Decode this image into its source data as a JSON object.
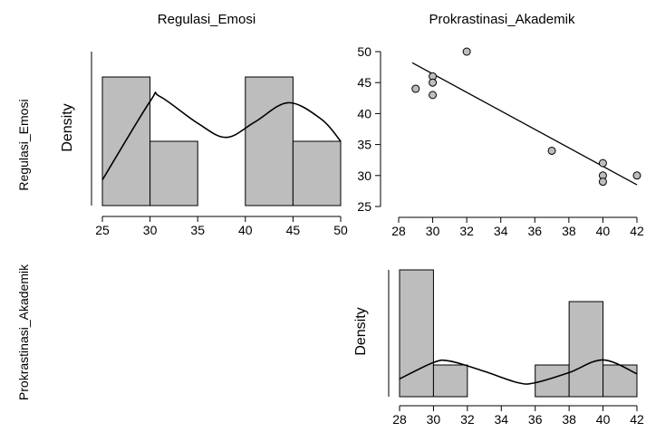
{
  "labels": {
    "col_left": "Regulasi_Emosi",
    "col_right": "Prokrastinasi_Akademik",
    "row_top": "Regulasi_Emosi",
    "row_bottom": "Prokrastinasi_Akademik"
  },
  "chart_data": [
    {
      "type": "histogram",
      "variable": "Regulasi_Emosi",
      "ylabel": "Density",
      "xlim": [
        25,
        50
      ],
      "xticks": [
        25,
        30,
        35,
        40,
        45,
        50
      ],
      "bins": [
        {
          "from": 25,
          "to": 30,
          "count": 2
        },
        {
          "from": 30,
          "to": 35,
          "count": 1
        },
        {
          "from": 35,
          "to": 40,
          "count": 0
        },
        {
          "from": 40,
          "to": 45,
          "count": 2
        },
        {
          "from": 45,
          "to": 50,
          "count": 1
        }
      ],
      "density_curve": [
        [
          25,
          0.2
        ],
        [
          30,
          0.81
        ],
        [
          31,
          0.85
        ],
        [
          35,
          0.64
        ],
        [
          38,
          0.53
        ],
        [
          41,
          0.65
        ],
        [
          44.5,
          0.8
        ],
        [
          48,
          0.67
        ],
        [
          50,
          0.5
        ]
      ]
    },
    {
      "type": "scatter",
      "x_variable": "Prokrastinasi_Akademik",
      "y_variable": "Regulasi_Emosi",
      "xlim": [
        28,
        42
      ],
      "ylim": [
        25,
        50
      ],
      "xticks": [
        28,
        30,
        32,
        34,
        36,
        38,
        40,
        42
      ],
      "yticks": [
        25,
        30,
        35,
        40,
        45,
        50
      ],
      "points": [
        {
          "x": 29,
          "y": 44
        },
        {
          "x": 30,
          "y": 46
        },
        {
          "x": 30,
          "y": 45
        },
        {
          "x": 30,
          "y": 43
        },
        {
          "x": 32,
          "y": 50
        },
        {
          "x": 37,
          "y": 34
        },
        {
          "x": 40,
          "y": 32
        },
        {
          "x": 40,
          "y": 30
        },
        {
          "x": 40,
          "y": 29
        },
        {
          "x": 42,
          "y": 30
        }
      ],
      "regression_line": {
        "x0": 28.8,
        "y0": 48.2,
        "x1": 42,
        "y1": 28.5
      }
    },
    {
      "type": "histogram",
      "variable": "Prokrastinasi_Akademik",
      "ylabel": "Density",
      "xlim": [
        28,
        42
      ],
      "xticks": [
        28,
        30,
        32,
        34,
        36,
        38,
        40,
        42
      ],
      "bins": [
        {
          "from": 28,
          "to": 30,
          "count": 4
        },
        {
          "from": 30,
          "to": 32,
          "count": 1
        },
        {
          "from": 32,
          "to": 34,
          "count": 0
        },
        {
          "from": 34,
          "to": 36,
          "count": 0
        },
        {
          "from": 36,
          "to": 38,
          "count": 1
        },
        {
          "from": 38,
          "to": 40,
          "count": 3
        },
        {
          "from": 40,
          "to": 42,
          "count": 1
        }
      ],
      "density_curve": [
        [
          28,
          0.14
        ],
        [
          30,
          0.27
        ],
        [
          31,
          0.28
        ],
        [
          33,
          0.2
        ],
        [
          35,
          0.11
        ],
        [
          36,
          0.11
        ],
        [
          38,
          0.19
        ],
        [
          40,
          0.29
        ],
        [
          42,
          0.18
        ]
      ]
    }
  ]
}
